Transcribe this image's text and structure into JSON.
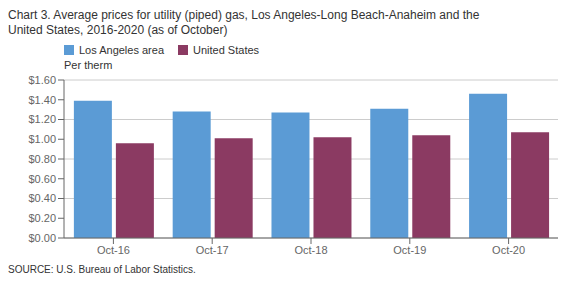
{
  "chart_data": {
    "type": "bar",
    "title": "Chart 3. Average prices for utility (piped) gas, Los Angeles-Long Beach-Anaheim and the\nUnited States, 2016-2020  (as of October)",
    "ylabel": "Per therm",
    "source": "SOURCE: U.S. Bureau of Labor Statistics.",
    "categories": [
      "Oct-16",
      "Oct-17",
      "Oct-18",
      "Oct-19",
      "Oct-20"
    ],
    "series": [
      {
        "name": "Los Angeles area",
        "color": "#5B9BD5",
        "values": [
          1.39,
          1.28,
          1.27,
          1.31,
          1.46
        ]
      },
      {
        "name": "United States",
        "color": "#8B3A62",
        "values": [
          0.96,
          1.01,
          1.02,
          1.04,
          1.07
        ]
      }
    ],
    "ylim": [
      0,
      1.6
    ],
    "yticks": [
      {
        "value": 0,
        "label": "$0.00"
      },
      {
        "value": 0.2,
        "label": "$0.20"
      },
      {
        "value": 0.4,
        "label": "$0.40"
      },
      {
        "value": 0.6,
        "label": "$0.60"
      },
      {
        "value": 0.8,
        "label": "$0.80"
      },
      {
        "value": 1.0,
        "label": "$1.00"
      },
      {
        "value": 1.2,
        "label": "$1.20"
      },
      {
        "value": 1.4,
        "label": "$1.40"
      },
      {
        "value": 1.6,
        "label": "$1.60"
      }
    ],
    "grid": true,
    "legend": "upper left"
  }
}
